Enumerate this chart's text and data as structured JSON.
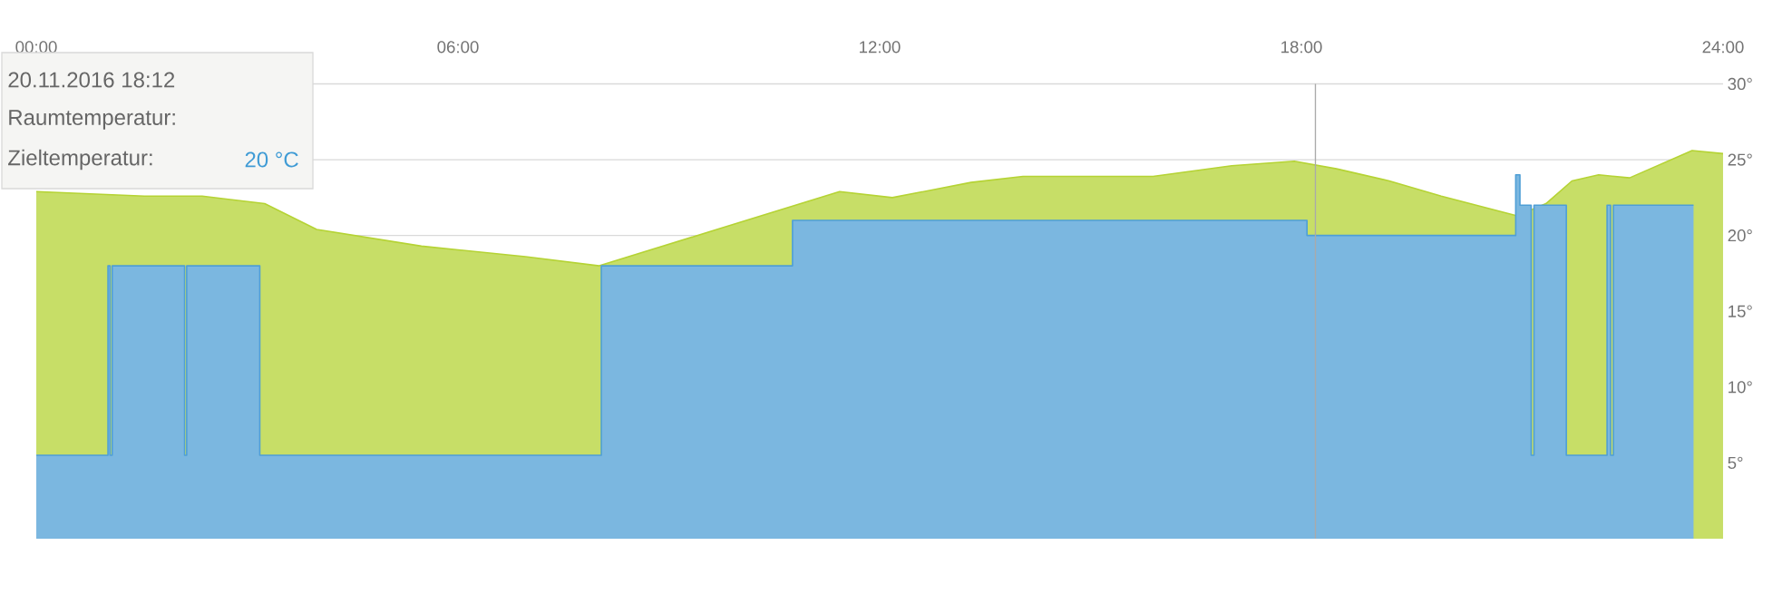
{
  "chart_data": {
    "type": "area",
    "xlim": [
      0,
      24
    ],
    "ylim": [
      0,
      30
    ],
    "xticks": [
      {
        "value": 0,
        "label": "00:00"
      },
      {
        "value": 6,
        "label": "06:00"
      },
      {
        "value": 12,
        "label": "12:00"
      },
      {
        "value": 18,
        "label": "18:00"
      },
      {
        "value": 24,
        "label": "24:00"
      }
    ],
    "yticks": [
      {
        "value": 5,
        "label": "5°"
      },
      {
        "value": 10,
        "label": "10°"
      },
      {
        "value": 15,
        "label": "15°"
      },
      {
        "value": 20,
        "label": "20°"
      },
      {
        "value": 25,
        "label": "25°"
      },
      {
        "value": 30,
        "label": "30°"
      }
    ],
    "grid": "y",
    "series": [
      {
        "type": "area",
        "color": "#b5d334",
        "x": [
          0,
          1.54,
          2.36,
          3.25,
          3.99,
          5.48,
          6.96,
          8.01,
          11.43,
          12.18,
          13.3,
          14.04,
          15.89,
          17.01,
          17.9,
          18.5,
          19.25,
          19.99,
          21.07,
          21.48,
          21.85,
          22.23,
          22.67,
          23.56,
          24
        ],
        "values": [
          22.9,
          22.6,
          22.6,
          22.1,
          20.4,
          19.3,
          18.6,
          18.0,
          22.9,
          22.5,
          23.5,
          23.9,
          23.9,
          24.6,
          24.9,
          24.4,
          23.6,
          22.6,
          21.3,
          22.1,
          23.6,
          24.0,
          23.8,
          25.6,
          25.4
        ]
      },
      {
        "color": "#4f9fd6",
        "x": [
          0,
          1.02,
          1.02,
          1.05,
          1.05,
          1.08,
          1.08,
          2.11,
          2.11,
          2.14,
          2.14,
          3.18,
          3.18,
          8.04,
          8.04,
          10.76,
          10.76,
          18.08,
          18.08,
          21.05,
          21.05,
          21.11,
          21.11,
          21.27,
          21.27,
          21.31,
          21.31,
          21.77,
          21.77,
          22.35,
          22.35,
          22.4,
          22.4,
          22.44,
          22.44,
          23.58
        ],
        "values": [
          5.5,
          5.5,
          18,
          18,
          5.5,
          5.5,
          18,
          18,
          5.5,
          5.5,
          18,
          18,
          5.5,
          5.5,
          18,
          18,
          21,
          21,
          20,
          20,
          24,
          24,
          22,
          22,
          5.5,
          5.5,
          22,
          22,
          5.5,
          5.5,
          22,
          22,
          5.5,
          5.5,
          22,
          22
        ]
      }
    ],
    "ref_lines": [
      {
        "axis": "x",
        "value": 18.2,
        "color": "#aaaaaa"
      }
    ],
    "annotations": [
      "20.11.2016 18:12",
      "Raumtemperatur:",
      "Zieltemperatur:",
      "20 °C"
    ]
  }
}
